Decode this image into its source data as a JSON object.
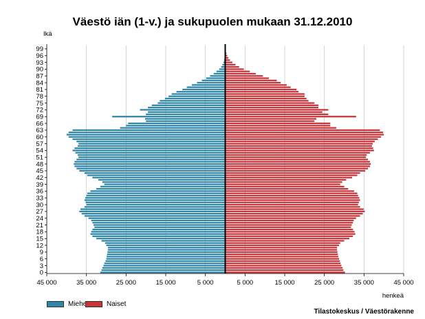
{
  "chart_data": {
    "type": "bar",
    "orientation": "horizontal",
    "title": "Väestö iän (1-v.) ja sukupuolen mukaan 31.12.2010",
    "ylabel": "Ikä",
    "xlabel": "henkeä",
    "xlim": [
      -45000,
      45000
    ],
    "x_tick_values": [
      -45000,
      -35000,
      -25000,
      -15000,
      -5000,
      5000,
      15000,
      25000,
      35000,
      45000
    ],
    "x_tick_labels": [
      "45 000",
      "35 000",
      "25 000",
      "15 000",
      "5 000",
      "5 000",
      "15 000",
      "25 000",
      "35 000",
      "45 000"
    ],
    "y_tick_labels": [
      "0",
      "3",
      "6",
      "9",
      "12",
      "15",
      "18",
      "21",
      "24",
      "27",
      "30",
      "33",
      "36",
      "39",
      "42",
      "45",
      "48",
      "51",
      "54",
      "57",
      "60",
      "63",
      "66",
      "69",
      "72",
      "75",
      "78",
      "81",
      "84",
      "87",
      "90",
      "93",
      "96",
      "99"
    ],
    "legend_position": "bottom-left",
    "source": "Tilastokeskus / Väestörakenne",
    "categories": [
      0,
      1,
      2,
      3,
      4,
      5,
      6,
      7,
      8,
      9,
      10,
      11,
      12,
      13,
      14,
      15,
      16,
      17,
      18,
      19,
      20,
      21,
      22,
      23,
      24,
      25,
      26,
      27,
      28,
      29,
      30,
      31,
      32,
      33,
      34,
      35,
      36,
      37,
      38,
      39,
      40,
      41,
      42,
      43,
      44,
      45,
      46,
      47,
      48,
      49,
      50,
      51,
      52,
      53,
      54,
      55,
      56,
      57,
      58,
      59,
      60,
      61,
      62,
      63,
      64,
      65,
      66,
      67,
      68,
      69,
      70,
      71,
      72,
      73,
      74,
      75,
      76,
      77,
      78,
      79,
      80,
      81,
      82,
      83,
      84,
      85,
      86,
      87,
      88,
      89,
      90,
      91,
      92,
      93,
      94,
      95,
      96,
      97,
      98,
      99,
      100
    ],
    "series": [
      {
        "name": "Miehet",
        "color": "#2f86a8",
        "values": [
          31500,
          31200,
          31000,
          30700,
          30500,
          30200,
          30000,
          29900,
          29800,
          29700,
          29600,
          29600,
          30000,
          30300,
          31200,
          32500,
          33500,
          34000,
          33800,
          33500,
          33000,
          33200,
          33500,
          33800,
          34500,
          35500,
          36200,
          36800,
          36500,
          35500,
          35000,
          35200,
          35500,
          35300,
          35000,
          34800,
          34000,
          32500,
          31500,
          30500,
          31000,
          32000,
          33500,
          34800,
          35500,
          36800,
          37500,
          38000,
          38200,
          38000,
          37500,
          37000,
          37200,
          37800,
          38500,
          38000,
          37200,
          37000,
          37500,
          38500,
          39500,
          40000,
          39500,
          38500,
          26500,
          25000,
          24500,
          20000,
          20200,
          28500,
          20000,
          19500,
          21500,
          19500,
          18500,
          17000,
          16500,
          15200,
          14300,
          13500,
          12300,
          10800,
          9700,
          8400,
          7100,
          5900,
          4800,
          3800,
          2900,
          2200,
          1500,
          1000,
          700,
          450,
          300,
          180,
          120,
          70,
          40,
          20,
          10
        ]
      },
      {
        "name": "Naiset",
        "color": "#c8343a",
        "values": [
          30200,
          29800,
          29600,
          29300,
          29100,
          28900,
          28700,
          28500,
          28400,
          28300,
          28200,
          28200,
          28700,
          29000,
          30000,
          31300,
          32200,
          32800,
          32600,
          32200,
          31700,
          31900,
          32200,
          32400,
          33000,
          34000,
          34700,
          35200,
          34900,
          34000,
          33500,
          33700,
          34000,
          33800,
          33500,
          33300,
          32500,
          31000,
          30000,
          29000,
          29500,
          30500,
          32000,
          33300,
          34000,
          35300,
          36000,
          36500,
          36700,
          36500,
          36000,
          35500,
          35700,
          36500,
          37500,
          37300,
          37000,
          37200,
          37700,
          38500,
          39300,
          40000,
          39800,
          39000,
          28000,
          26500,
          26500,
          22500,
          23000,
          33000,
          26000,
          24500,
          26000,
          23500,
          23500,
          22500,
          21000,
          20500,
          20000,
          20000,
          18500,
          18000,
          16500,
          15500,
          14000,
          13000,
          11000,
          9500,
          7700,
          6200,
          4700,
          3500,
          2600,
          1800,
          1200,
          800,
          500,
          300,
          150,
          80,
          40
        ]
      }
    ]
  }
}
